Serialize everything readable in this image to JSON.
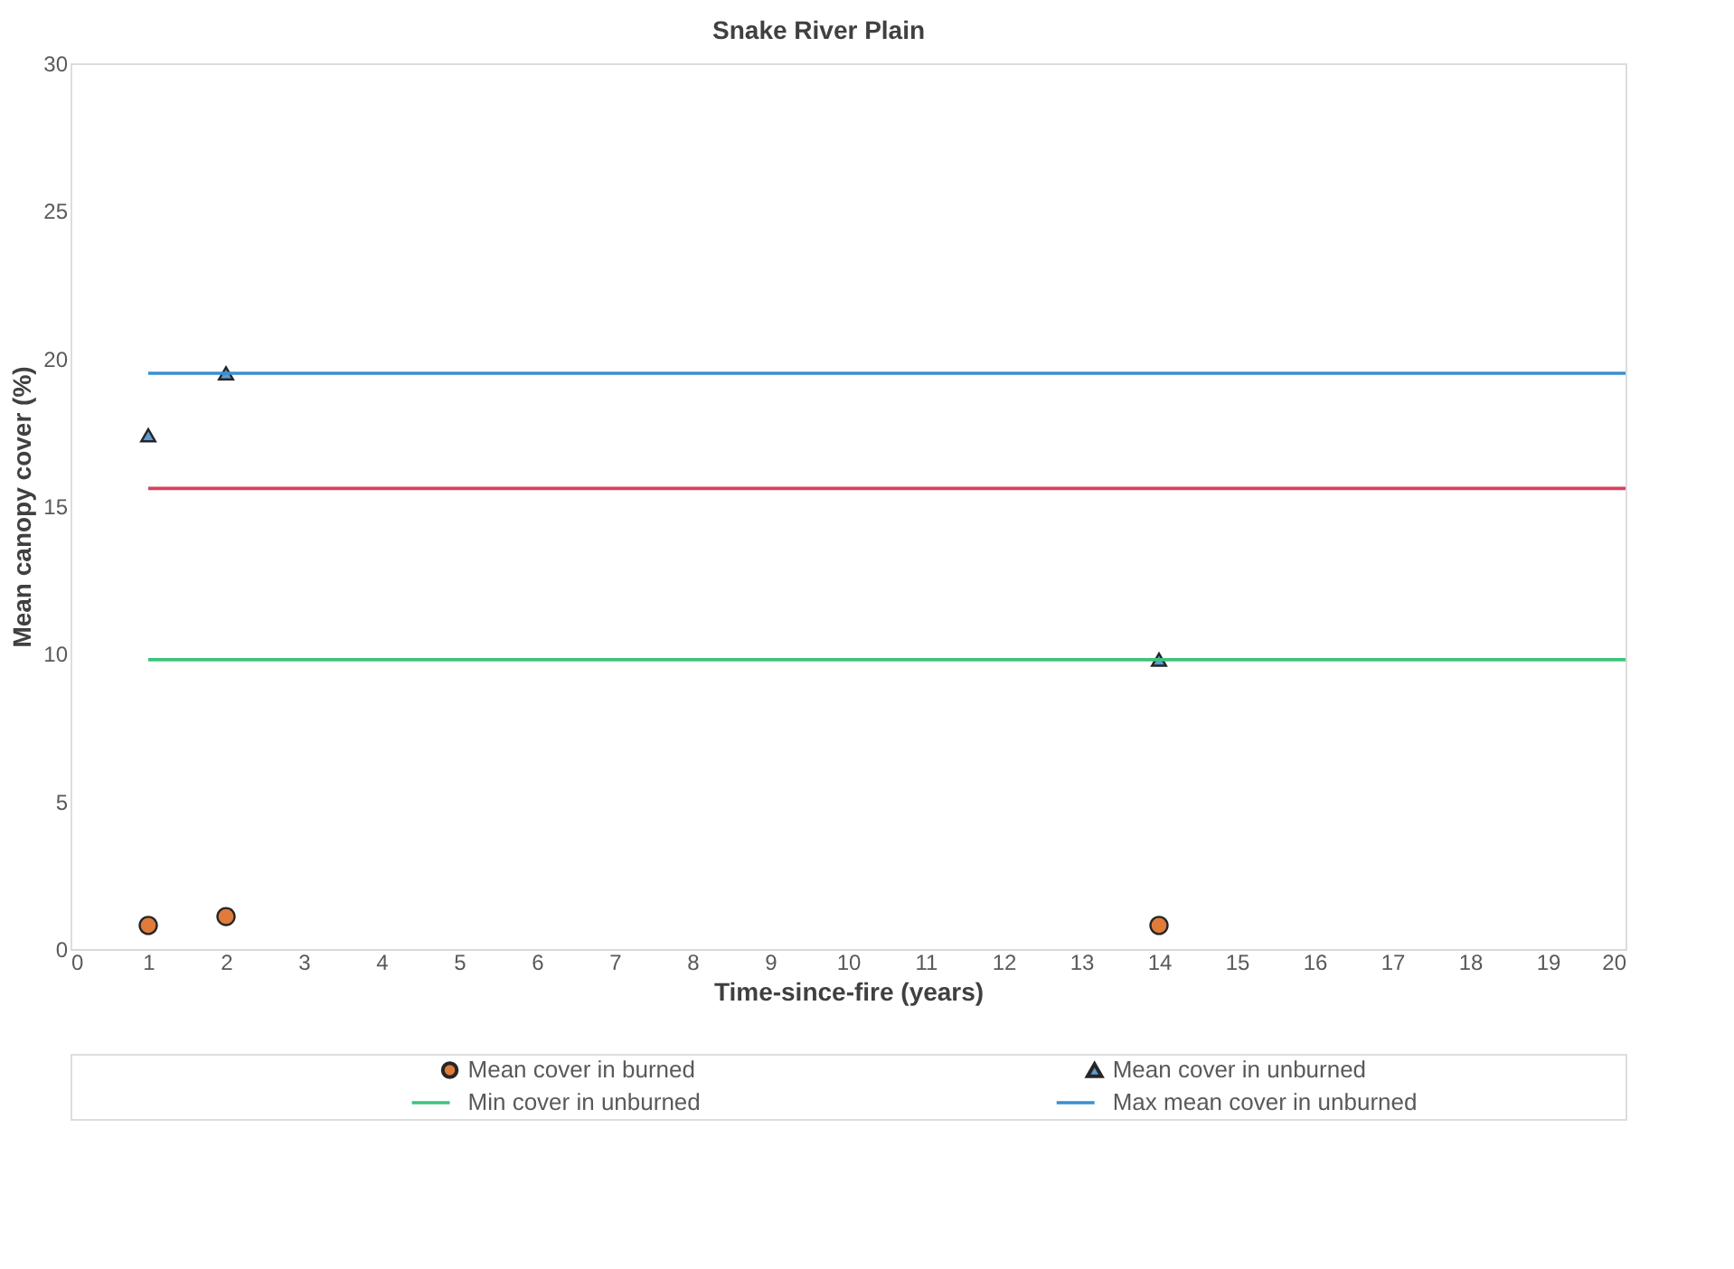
{
  "chart_data": {
    "type": "scatter",
    "title": "Snake River Plain",
    "xlabel": "Time-since-fire (years)",
    "ylabel": "Mean canopy cover (%)",
    "xlim": [
      0,
      20
    ],
    "xticks": [
      0,
      1,
      2,
      3,
      4,
      5,
      6,
      7,
      8,
      9,
      10,
      11,
      12,
      13,
      14,
      15,
      16,
      17,
      18,
      19,
      20
    ],
    "ylim": [
      0,
      30
    ],
    "yticks": [
      0,
      5,
      10,
      15,
      20,
      25,
      30
    ],
    "grid": false,
    "legend": "bottom",
    "series": [
      {
        "name": "Mean cover in burned",
        "marker": "circle",
        "color": "#e07b39",
        "x": [
          1,
          2,
          14
        ],
        "values": [
          0.8,
          1.1,
          0.8
        ]
      },
      {
        "name": "Mean cover in unburned",
        "marker": "triangle",
        "color": "#5b9bd5",
        "x": [
          1,
          2,
          14
        ],
        "values": [
          17.4,
          19.5,
          9.8
        ]
      },
      {
        "name": "Min cover in unburned",
        "type": "line",
        "color": "#3cc47c",
        "x": [
          1,
          20
        ],
        "values": [
          9.8,
          9.8
        ]
      },
      {
        "name": "Max mean cover in unburned",
        "type": "line",
        "color": "#3a8fd0",
        "x": [
          1,
          20
        ],
        "values": [
          19.5,
          19.5
        ]
      },
      {
        "type": "line",
        "color": "#d9415a",
        "x": [
          1,
          20
        ],
        "values": [
          15.6,
          15.6
        ]
      }
    ]
  }
}
